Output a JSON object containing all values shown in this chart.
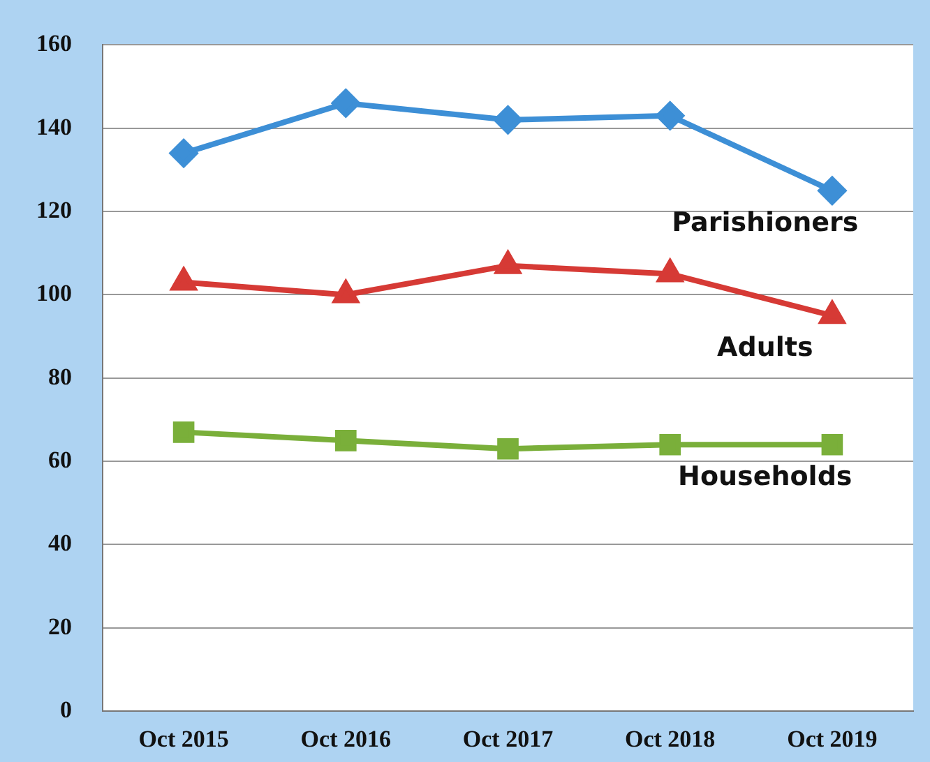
{
  "chart_data": {
    "type": "line",
    "categories": [
      "Oct 2015",
      "Oct 2016",
      "Oct 2017",
      "Oct 2018",
      "Oct 2019"
    ],
    "series": [
      {
        "name": "Parishioners",
        "color": "#3d8fd6",
        "marker": "diamond",
        "values": [
          134,
          146,
          142,
          143,
          125
        ]
      },
      {
        "name": "Adults",
        "color": "#d63a35",
        "marker": "triangle",
        "values": [
          103,
          100,
          107,
          105,
          95
        ]
      },
      {
        "name": "Households",
        "color": "#7aaf3a",
        "marker": "square",
        "values": [
          67,
          65,
          63,
          64,
          64
        ]
      }
    ],
    "ylim": [
      0,
      160
    ],
    "yticks": [
      0,
      20,
      40,
      60,
      80,
      100,
      120,
      140,
      160
    ],
    "grid": "y",
    "legend": false
  }
}
